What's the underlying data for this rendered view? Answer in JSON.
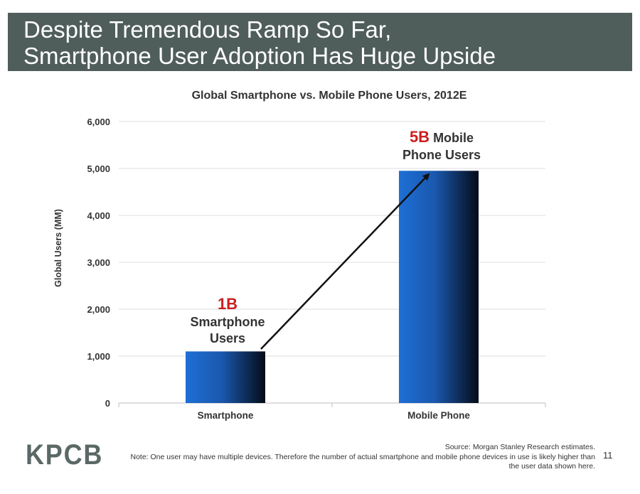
{
  "slide": {
    "title_line1": "Despite Tremendous Ramp So Far,",
    "title_line2": "Smartphone User Adoption Has Huge Upside",
    "logo": "KPCB",
    "source": "Source: Morgan Stanley Research estimates.",
    "note_line1": "Note: One user may have multiple devices. Therefore the number of actual smartphone and mobile phone devices in use is likely higher than",
    "note_line2": "the user data shown here.",
    "page_number": "11"
  },
  "chart_data": {
    "type": "bar",
    "title": "Global Smartphone vs. Mobile Phone Users, 2012E",
    "ylabel": "Global Users (MM)",
    "xlabel": "",
    "categories": [
      "Smartphone",
      "Mobile Phone"
    ],
    "values": [
      1100,
      4950
    ],
    "ylim": [
      0,
      6000
    ],
    "yticks": [
      "0",
      "1,000",
      "2,000",
      "3,000",
      "4,000",
      "5,000",
      "6,000"
    ],
    "grid": true,
    "bar_color": "#1e6fd6",
    "annotations": [
      {
        "value_text": "1B",
        "text_lines": [
          "Smartphone",
          "Users"
        ]
      },
      {
        "value_text": "5B",
        "text_inline": "Mobile",
        "text_lines": [
          "Phone Users"
        ]
      }
    ],
    "annotation_color": "#cc1f1f",
    "arrow": "from Smartphone bar up to Mobile Phone bar"
  }
}
